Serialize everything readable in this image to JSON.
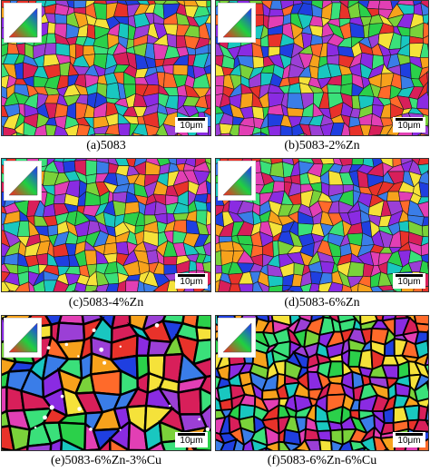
{
  "figure": {
    "panels": [
      {
        "caption": "(a)5083",
        "scale_label": "10μm",
        "grain_style": "fine-color"
      },
      {
        "caption": "(b)5083-2%Zn",
        "scale_label": "10μm",
        "grain_style": "fine-color"
      },
      {
        "caption": "(c)5083-4%Zn",
        "scale_label": "10μm",
        "grain_style": "fine-color"
      },
      {
        "caption": "(d)5083-6%Zn",
        "scale_label": "10μm",
        "grain_style": "fine-color"
      },
      {
        "caption": "(e)5083-6%Zn-3%Cu",
        "scale_label": "10μm",
        "grain_style": "coarse-outlined"
      },
      {
        "caption": "(f)5083-6%Zn-6%Cu",
        "scale_label": "10μm",
        "grain_style": "fine-outlined"
      }
    ],
    "palette": [
      "#e8322a",
      "#1f3fe0",
      "#2bd04a",
      "#f7a21c",
      "#9b3fd6",
      "#19c7c0",
      "#e23fb4",
      "#7ad23a",
      "#3a7de8",
      "#f5e23a",
      "#d81f5a",
      "#8a2be2",
      "#3ae07a",
      "#ff6a2a"
    ]
  }
}
